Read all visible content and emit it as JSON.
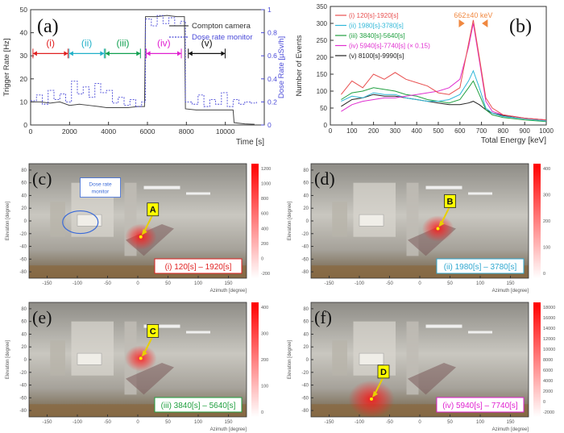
{
  "chart_data": [
    {
      "type": "line",
      "panel_label": "(a)",
      "xlabel": "Time [s]",
      "ylabel_left": "Trigger Rate [Hz]",
      "ylabel_right": "Dose Rate [µSv/h]",
      "xlim": [
        0,
        12000
      ],
      "ylim_left": [
        0,
        50
      ],
      "ylim_right": [
        0,
        1.0
      ],
      "x_ticks": [
        "0",
        "2000",
        "4000",
        "6000",
        "8000",
        "10000"
      ],
      "y_ticks_left": [
        "0",
        "10",
        "20",
        "30",
        "40",
        "50"
      ],
      "y_ticks_right": [
        "0",
        "0.2",
        "0.4",
        "0.6",
        "0.8",
        "1"
      ],
      "legend": [
        "Compton camera",
        "Dose rate monitor"
      ],
      "intervals": [
        {
          "label": "(i)",
          "start": 120,
          "end": 1920,
          "color": "#e02020"
        },
        {
          "label": "(ii)",
          "start": 1980,
          "end": 3780,
          "color": "#20b0c8"
        },
        {
          "label": "(iii)",
          "start": 3840,
          "end": 5640,
          "color": "#10a050"
        },
        {
          "label": "(iv)",
          "start": 5940,
          "end": 7740,
          "color": "#e020d0"
        },
        {
          "label": "(v)",
          "start": 8100,
          "end": 9990,
          "color": "#111111"
        }
      ],
      "series": [
        {
          "name": "Compton camera",
          "color": "#444444",
          "x": [
            0,
            500,
            1000,
            1500,
            2000,
            2500,
            3000,
            3500,
            3900,
            4500,
            5000,
            5500,
            5850,
            5900,
            6500,
            7000,
            7500,
            7900,
            7950,
            8500,
            9000,
            9500,
            10000,
            10400,
            10450,
            11000,
            11500
          ],
          "y": [
            10,
            10,
            9.5,
            10,
            8.5,
            9,
            8.5,
            8,
            7.5,
            7.5,
            7.5,
            8,
            8,
            47,
            47,
            47.5,
            47,
            47,
            7,
            6.5,
            6.5,
            6.5,
            6.5,
            6.5,
            1,
            0.5,
            0.3
          ]
        },
        {
          "name": "Dose rate monitor",
          "color": "#4a4ad8",
          "x": [
            0,
            300,
            600,
            900,
            1200,
            1500,
            1800,
            2100,
            2400,
            2700,
            3000,
            3300,
            3600,
            3900,
            4200,
            4500,
            4800,
            5100,
            5400,
            5700,
            5900,
            6200,
            6500,
            6800,
            7100,
            7400,
            7700,
            7950,
            8300,
            8600,
            8900,
            9200,
            9500,
            9800,
            10100,
            10400,
            10700,
            11000,
            11300,
            11600
          ],
          "y": [
            0.21,
            0.26,
            0.18,
            0.3,
            0.22,
            0.27,
            0.2,
            0.38,
            0.27,
            0.33,
            0.24,
            0.36,
            0.28,
            0.3,
            0.19,
            0.24,
            0.17,
            0.22,
            0.16,
            0.2,
            0.92,
            0.86,
            0.95,
            0.88,
            0.93,
            0.86,
            0.9,
            0.2,
            0.18,
            0.26,
            0.16,
            0.22,
            0.18,
            0.28,
            0.16,
            0.22,
            0.18,
            0.2,
            0.19,
            0.2
          ]
        }
      ]
    },
    {
      "type": "line",
      "panel_label": "(b)",
      "xlabel": "Total Energy [keV]",
      "ylabel": "Number of Events",
      "xlim": [
        0,
        1000
      ],
      "ylim": [
        0,
        350
      ],
      "x_ticks": [
        "0",
        "100",
        "200",
        "300",
        "400",
        "500",
        "600",
        "700",
        "800",
        "900",
        "1000"
      ],
      "y_ticks": [
        "0",
        "50",
        "100",
        "150",
        "200",
        "250",
        "300",
        "350"
      ],
      "annotation": "662±40 keV",
      "legend": [
        "(i) 120[s]-1920[s]",
        "(ii) 1980[s]-3780[s]",
        "(iii) 3840[s]-5640[s]",
        "(iv) 5940[s]-7740[s] (× 0.15)",
        "(v) 8100[s]-9990[s]"
      ],
      "x": [
        50,
        100,
        150,
        200,
        250,
        300,
        350,
        400,
        450,
        500,
        550,
        600,
        640,
        662,
        690,
        720,
        750,
        800,
        900,
        1000
      ],
      "series": [
        {
          "name": "(i) 120[s]-1920[s]",
          "color": "#e85050",
          "values": [
            90,
            130,
            110,
            150,
            135,
            155,
            135,
            125,
            115,
            95,
            90,
            110,
            240,
            310,
            200,
            80,
            50,
            30,
            20,
            15
          ]
        },
        {
          "name": "(ii) 1980[s]-3780[s]",
          "color": "#30b8d8",
          "values": [
            70,
            85,
            80,
            95,
            90,
            90,
            80,
            75,
            70,
            70,
            75,
            90,
            130,
            160,
            110,
            50,
            35,
            25,
            18,
            12
          ]
        },
        {
          "name": "(iii) 3840[s]-5640[s]",
          "color": "#20a040",
          "values": [
            75,
            95,
            100,
            110,
            105,
            100,
            90,
            85,
            75,
            70,
            65,
            75,
            110,
            130,
            90,
            45,
            30,
            22,
            15,
            10
          ]
        },
        {
          "name": "(iv) 5940[s]-7740[s] (× 0.15)",
          "color": "#e030d0",
          "values": [
            40,
            60,
            70,
            75,
            80,
            80,
            85,
            90,
            95,
            100,
            110,
            135,
            230,
            300,
            190,
            70,
            40,
            30,
            20,
            15
          ]
        },
        {
          "name": "(v) 8100[s]-9990[s]",
          "color": "#222222",
          "values": [
            55,
            75,
            80,
            90,
            85,
            85,
            80,
            75,
            70,
            65,
            60,
            60,
            65,
            70,
            60,
            45,
            35,
            28,
            20,
            15
          ]
        }
      ]
    },
    {
      "type": "heatmap",
      "panel_label": "(c)",
      "xlabel": "Azimuth [degree]",
      "ylabel": "Elevation [degree]",
      "xlim": [
        -180,
        180
      ],
      "ylim": [
        -90,
        90
      ],
      "x_ticks": [
        "-150",
        "-100",
        "-50",
        "0",
        "50",
        "100",
        "150"
      ],
      "y_ticks": [
        "80",
        "60",
        "40",
        "20",
        "0",
        "-20",
        "-40",
        "-60",
        "-80"
      ],
      "colorbar_ticks": [
        "1200",
        "1000",
        "800",
        "600",
        "400",
        "200",
        "0",
        "-200"
      ],
      "interval_text": "(i) 120[s] – 1920[s]",
      "interval_color": "#e02020",
      "marker_label": "A",
      "source": {
        "azimuth": 5,
        "elevation": -25
      },
      "annotation": "Dose rate monitor"
    },
    {
      "type": "heatmap",
      "panel_label": "(d)",
      "xlabel": "Azimuth [degree]",
      "ylabel": "Elevation [degree]",
      "xlim": [
        -180,
        180
      ],
      "ylim": [
        -90,
        90
      ],
      "x_ticks": [
        "-150",
        "-100",
        "-50",
        "0",
        "50",
        "100",
        "150"
      ],
      "y_ticks": [
        "80",
        "60",
        "40",
        "20",
        "0",
        "-20",
        "-40",
        "-60",
        "-80"
      ],
      "colorbar_ticks": [
        "400",
        "300",
        "200",
        "100",
        "0"
      ],
      "interval_text": "(ii) 1980[s] – 3780[s]",
      "interval_color": "#30a8d0",
      "marker_label": "B",
      "source": {
        "azimuth": 30,
        "elevation": -12
      }
    },
    {
      "type": "heatmap",
      "panel_label": "(e)",
      "xlabel": "Azimuth [degree]",
      "ylabel": "Elevation [degree]",
      "xlim": [
        -180,
        180
      ],
      "ylim": [
        -90,
        90
      ],
      "x_ticks": [
        "-150",
        "-100",
        "-50",
        "0",
        "50",
        "100",
        "150"
      ],
      "y_ticks": [
        "80",
        "60",
        "40",
        "20",
        "0",
        "-20",
        "-40",
        "-60",
        "-80"
      ],
      "colorbar_ticks": [
        "400",
        "300",
        "200",
        "100",
        "0"
      ],
      "interval_text": "(iii) 3840[s] – 5640[s]",
      "interval_color": "#20a040",
      "marker_label": "C",
      "source": {
        "azimuth": 5,
        "elevation": 2
      }
    },
    {
      "type": "heatmap",
      "panel_label": "(f)",
      "xlabel": "Azimuth [degree]",
      "ylabel": "Elevation [degree]",
      "xlim": [
        -180,
        180
      ],
      "ylim": [
        -90,
        90
      ],
      "x_ticks": [
        "-150",
        "-100",
        "-50",
        "0",
        "50",
        "100",
        "150"
      ],
      "y_ticks": [
        "80",
        "60",
        "40",
        "20",
        "0",
        "-20",
        "-40",
        "-60",
        "-80"
      ],
      "colorbar_ticks": [
        "18000",
        "16000",
        "14000",
        "12000",
        "10000",
        "8000",
        "6000",
        "4000",
        "2000",
        "0",
        "-2000"
      ],
      "interval_text": "(iv) 5940[s] – 7740[s]",
      "interval_color": "#e020d0",
      "marker_label": "D",
      "source": {
        "azimuth": -80,
        "elevation": -62
      }
    }
  ]
}
